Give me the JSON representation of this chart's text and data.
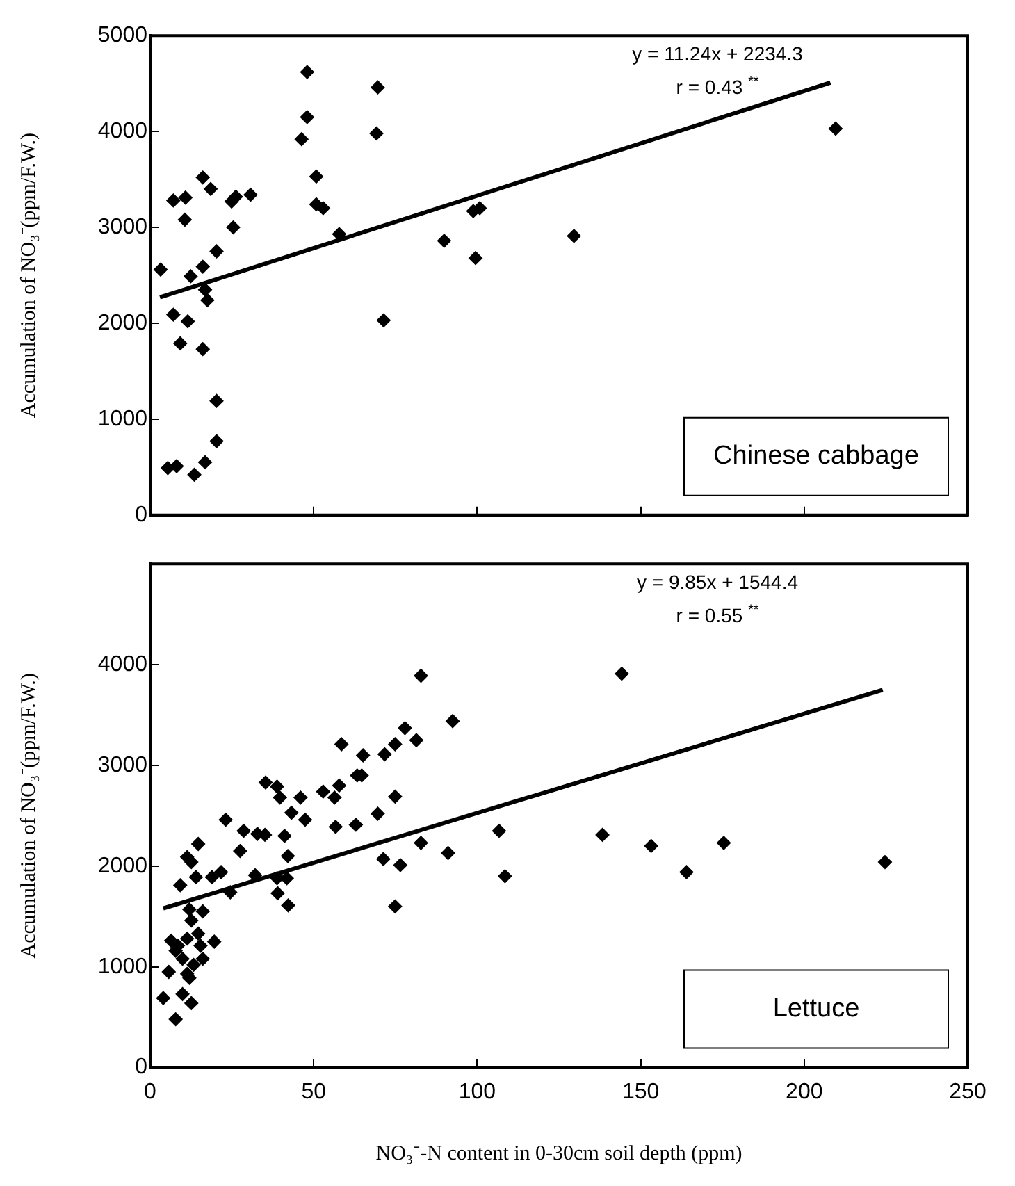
{
  "chart_data": [
    {
      "type": "scatter",
      "ylabel": "Accumulation of NO₃⁻(ppm/F.W.)",
      "annotations": [
        "y = 11.24x + 2234.3",
        "r = 0.43 $^{**}$",
        "Chinese cabbage"
      ],
      "xlim": [
        0,
        250
      ],
      "xticks": [
        0,
        50,
        100,
        150,
        200,
        250
      ],
      "ylim": [
        0,
        5000
      ],
      "yticks": [
        0,
        1000,
        2000,
        3000,
        4000,
        5000
      ],
      "tick_labels": "y",
      "grid": false,
      "legend": false,
      "marker": "diamond",
      "series": [
        {
          "color": "#000000",
          "x": [
            48.0,
            69.6,
            48.0,
            46.3,
            69.2,
            50.8,
            50.8,
            52.9,
            57.8,
            98.8,
            100.8,
            89.9,
            99.5,
            71.4,
            3.2,
            7.1,
            10.8,
            16.1,
            18.5,
            24.9,
            26.2,
            30.7,
            10.6,
            25.4,
            20.3,
            16.1,
            12.4,
            16.8,
            17.5,
            7.1,
            11.5,
            9.2,
            16.1,
            20.3,
            20.3,
            16.8,
            5.4,
            8.1,
            13.5,
            209.6,
            129.6
          ],
          "values": [
            4620,
            4460,
            4150,
            3920,
            3980,
            3530,
            3240,
            3200,
            2930,
            3170,
            3200,
            2860,
            2680,
            2030,
            2560,
            3280,
            3310,
            3520,
            3400,
            3270,
            3320,
            3340,
            3080,
            3000,
            2750,
            2590,
            2490,
            2350,
            2240,
            2090,
            2020,
            1790,
            1730,
            1190,
            770,
            550,
            490,
            510,
            420,
            4030,
            2910
          ]
        },
        {
          "type": "line",
          "color": "#000000",
          "marker": "none",
          "line_style": "solid",
          "x": [
            3,
            208
          ],
          "values": [
            2270,
            4510
          ]
        }
      ]
    },
    {
      "type": "scatter",
      "xlabel": "NO₃⁻-N content in 0-30cm soil depth (ppm)",
      "ylabel": "Accumulation of NO₃⁻(ppm/F.W.)",
      "annotations": [
        "y = 9.85x + 1544.4",
        "r = 0.55 $^{**}$",
        "Lettuce"
      ],
      "xlim": [
        0,
        250
      ],
      "xticks": [
        0,
        50,
        100,
        150,
        200,
        250
      ],
      "ylim": [
        0,
        5000
      ],
      "yticks": [
        0,
        1000,
        2000,
        3000,
        4000
      ],
      "grid": false,
      "legend": false,
      "marker": "diamond",
      "series": [
        {
          "color": "#000000",
          "x": [
            82.8,
            92.5,
            77.9,
            81.4,
            74.9,
            71.7,
            58.5,
            65.1,
            63.3,
            64.7,
            57.8,
            52.9,
            56.4,
            35.3,
            38.8,
            39.7,
            46.0,
            43.2,
            47.4,
            74.9,
            69.6,
            56.7,
            62.9,
            23.1,
            28.6,
            32.8,
            35.1,
            41.1,
            27.5,
            42.1,
            82.8,
            91.1,
            71.3,
            76.5,
            74.9,
            14.7,
            11.3,
            12.6,
            14.0,
            18.9,
            21.7,
            32.1,
            24.5,
            38.8,
            41.8,
            39.0,
            42.2,
            9.2,
            12.0,
            16.1,
            12.6,
            14.7,
            19.6,
            6.4,
            8.5,
            7.8,
            11.3,
            15.4,
            9.9,
            16.1,
            13.3,
            11.3,
            5.7,
            12.0,
            9.9,
            12.6,
            4.0,
            7.8,
            144.2,
            106.7,
            108.5,
            138.3,
            153.2,
            164.0,
            175.4,
            224.7
          ],
          "values": [
            3890,
            3440,
            3370,
            3250,
            3210,
            3110,
            3210,
            3100,
            2900,
            2900,
            2800,
            2740,
            2680,
            2830,
            2790,
            2680,
            2680,
            2530,
            2460,
            2690,
            2520,
            2390,
            2410,
            2460,
            2350,
            2320,
            2310,
            2300,
            2150,
            2100,
            2230,
            2130,
            2070,
            2010,
            1600,
            2220,
            2090,
            2040,
            1890,
            1890,
            1940,
            1910,
            1740,
            1880,
            1880,
            1730,
            1610,
            1810,
            1570,
            1550,
            1460,
            1330,
            1250,
            1260,
            1210,
            1160,
            1280,
            1210,
            1080,
            1080,
            1020,
            930,
            950,
            890,
            730,
            640,
            690,
            480,
            3910,
            2350,
            1900,
            2310,
            2200,
            1940,
            2230,
            2040
          ]
        },
        {
          "type": "line",
          "color": "#000000",
          "marker": "none",
          "line_style": "solid",
          "x": [
            4,
            224
          ],
          "values": [
            1580,
            3750
          ]
        }
      ]
    }
  ]
}
